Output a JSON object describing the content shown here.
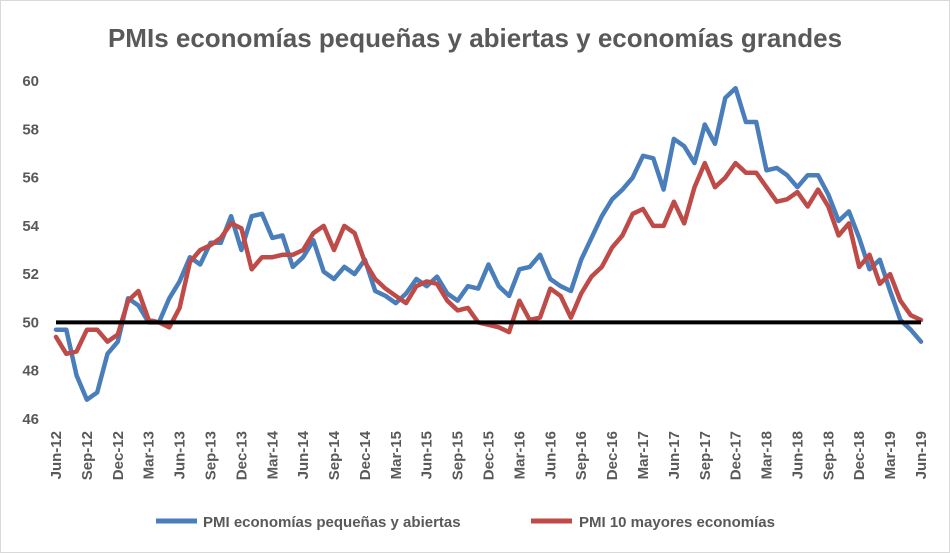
{
  "chart_data": {
    "type": "line",
    "title": "PMIs economías pequeñas y abiertas y economías grandes",
    "xlabel": "",
    "ylabel": "",
    "ylim": [
      46,
      60
    ],
    "yticks": [
      46,
      48,
      50,
      52,
      54,
      56,
      58,
      60
    ],
    "grid": false,
    "legend_position": "bottom",
    "reference_line": 50,
    "x_tick_labels": [
      "Jun-12",
      "Sep-12",
      "Dec-12",
      "Mar-13",
      "Jun-13",
      "Sep-13",
      "Dec-13",
      "Mar-14",
      "Jun-14",
      "Sep-14",
      "Dec-14",
      "Mar-15",
      "Jun-15",
      "Sep-15",
      "Dec-15",
      "Mar-16",
      "Jun-16",
      "Sep-16",
      "Dec-16",
      "Mar-17",
      "Jun-17",
      "Sep-17",
      "Dec-17",
      "Mar-18",
      "Jun-18",
      "Sep-18",
      "Dec-18",
      "Mar-19",
      "Jun-19"
    ],
    "colors": {
      "small": "#4a7ebb",
      "large": "#be4b48",
      "reference": "#000000"
    },
    "series": [
      {
        "name": "PMI economías pequeñas y abiertas",
        "values": [
          49.7,
          49.7,
          47.8,
          46.8,
          47.1,
          48.7,
          49.2,
          51.0,
          50.7,
          50.0,
          50.0,
          51.0,
          51.7,
          52.7,
          52.4,
          53.3,
          53.3,
          54.4,
          53.0,
          54.4,
          54.5,
          53.5,
          53.6,
          52.3,
          52.7,
          53.4,
          52.1,
          51.8,
          52.3,
          52.0,
          52.6,
          51.3,
          51.1,
          50.8,
          51.2,
          51.8,
          51.5,
          51.9,
          51.2,
          50.9,
          51.5,
          51.4,
          52.4,
          51.5,
          51.1,
          52.2,
          52.3,
          52.8,
          51.8,
          51.5,
          51.3,
          52.6,
          53.5,
          54.4,
          55.1,
          55.5,
          56.0,
          56.9,
          56.8,
          55.5,
          57.6,
          57.3,
          56.6,
          58.2,
          57.4,
          59.3,
          59.7,
          58.3,
          58.3,
          56.3,
          56.4,
          56.1,
          55.6,
          56.1,
          56.1,
          55.3,
          54.2,
          54.6,
          53.5,
          52.2,
          52.6,
          51.3,
          50.1,
          49.7,
          49.2
        ]
      },
      {
        "name": "PMI 10 mayores economías",
        "values": [
          49.4,
          48.7,
          48.8,
          49.7,
          49.7,
          49.2,
          49.5,
          50.9,
          51.3,
          50.1,
          50.0,
          49.8,
          50.6,
          52.5,
          53.0,
          53.2,
          53.5,
          54.1,
          53.9,
          52.2,
          52.7,
          52.7,
          52.8,
          52.8,
          53.0,
          53.7,
          54.0,
          53.0,
          54.0,
          53.7,
          52.5,
          51.8,
          51.4,
          51.1,
          50.8,
          51.5,
          51.7,
          51.6,
          50.9,
          50.5,
          50.6,
          50.0,
          49.9,
          49.8,
          49.6,
          50.9,
          50.1,
          50.2,
          51.4,
          51.1,
          50.2,
          51.2,
          51.9,
          52.3,
          53.1,
          53.6,
          54.5,
          54.7,
          54.0,
          54.0,
          55.0,
          54.1,
          55.6,
          56.6,
          55.6,
          56.0,
          56.6,
          56.2,
          56.2,
          55.6,
          55.0,
          55.1,
          55.4,
          54.8,
          55.5,
          54.8,
          53.6,
          54.1,
          52.3,
          52.8,
          51.6,
          52.0,
          50.9,
          50.3,
          50.1
        ]
      }
    ]
  }
}
